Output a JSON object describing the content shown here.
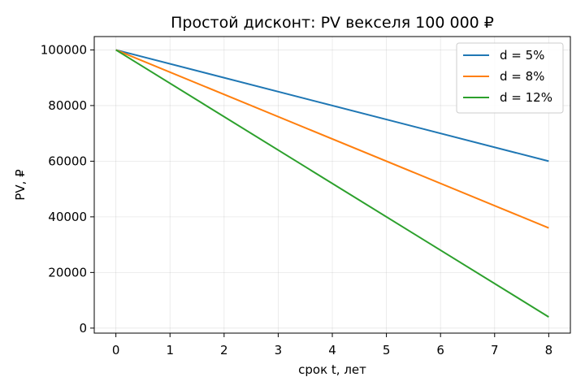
{
  "chart_data": {
    "type": "line",
    "title": "Простой дисконт: PV векселя 100 000 ₽",
    "xlabel": "срок t, лет",
    "ylabel": "PV, ₽",
    "x": [
      0,
      8
    ],
    "xlim": [
      -0.4,
      8.4
    ],
    "ylim": [
      -1800,
      104800
    ],
    "xticks": [
      0,
      1,
      2,
      3,
      4,
      5,
      6,
      7,
      8
    ],
    "yticks": [
      0,
      20000,
      40000,
      60000,
      80000,
      100000
    ],
    "grid": true,
    "legend_position": "top-right",
    "series": [
      {
        "name": "d = 5%",
        "color": "#1f77b4",
        "values": [
          100000,
          60000
        ]
      },
      {
        "name": "d = 8%",
        "color": "#ff7f0e",
        "values": [
          100000,
          36000
        ]
      },
      {
        "name": "d = 12%",
        "color": "#2ca02c",
        "values": [
          100000,
          4000
        ]
      }
    ]
  }
}
